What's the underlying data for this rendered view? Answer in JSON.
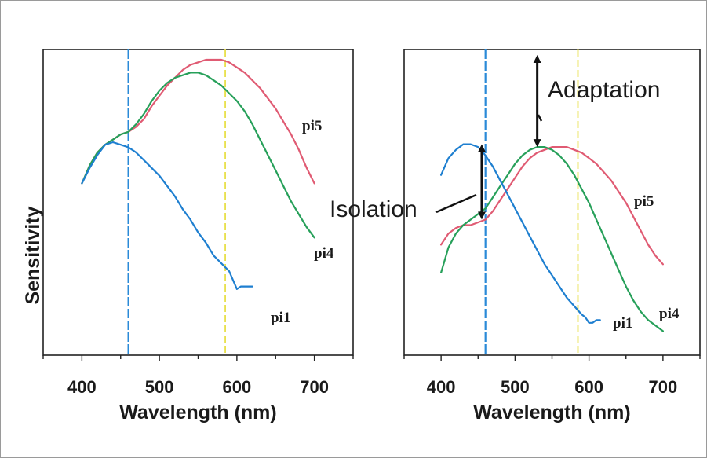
{
  "ylabel": "Sensitivity",
  "colors": {
    "pi1": "#1e7fd0",
    "pi4": "#27a05a",
    "pi5": "#e05b73",
    "blue_line": "#2a8ad8",
    "yellow_line": "#e8e04a"
  },
  "chart_data": [
    {
      "type": "line",
      "xlabel": "Wavelength (nm)",
      "ylabel": "Sensitivity",
      "xlim": [
        350,
        750
      ],
      "ylim": [
        0,
        1
      ],
      "xticks": [
        "400",
        "500",
        "600",
        "700"
      ],
      "vlines": [
        {
          "x": 460,
          "color": "#2a8ad8",
          "style": "dashed"
        },
        {
          "x": 585,
          "color": "#e8e04a",
          "style": "dashed"
        }
      ],
      "series": [
        {
          "name": "pi5",
          "color": "#e05b73",
          "x": [
            400,
            410,
            420,
            430,
            440,
            450,
            460,
            470,
            480,
            490,
            500,
            510,
            520,
            530,
            540,
            550,
            560,
            570,
            580,
            590,
            600,
            610,
            620,
            630,
            640,
            650,
            660,
            670,
            680,
            690,
            700
          ],
          "y": [
            0.52,
            0.59,
            0.64,
            0.67,
            0.69,
            0.71,
            0.72,
            0.74,
            0.77,
            0.82,
            0.86,
            0.9,
            0.93,
            0.96,
            0.98,
            0.99,
            1.0,
            1.0,
            1.0,
            0.99,
            0.97,
            0.95,
            0.92,
            0.89,
            0.85,
            0.81,
            0.76,
            0.71,
            0.65,
            0.58,
            0.52
          ]
        },
        {
          "name": "pi4",
          "color": "#27a05a",
          "x": [
            400,
            410,
            420,
            430,
            440,
            450,
            460,
            470,
            480,
            490,
            500,
            510,
            520,
            530,
            540,
            550,
            560,
            570,
            580,
            590,
            600,
            610,
            620,
            630,
            640,
            650,
            660,
            670,
            680,
            690,
            700
          ],
          "y": [
            0.52,
            0.59,
            0.64,
            0.67,
            0.69,
            0.71,
            0.72,
            0.75,
            0.79,
            0.84,
            0.88,
            0.91,
            0.93,
            0.94,
            0.95,
            0.95,
            0.94,
            0.92,
            0.9,
            0.87,
            0.84,
            0.8,
            0.75,
            0.69,
            0.63,
            0.57,
            0.51,
            0.45,
            0.4,
            0.35,
            0.31
          ]
        },
        {
          "name": "pi1",
          "color": "#1e7fd0",
          "x": [
            400,
            410,
            420,
            430,
            440,
            450,
            460,
            470,
            480,
            490,
            500,
            510,
            520,
            530,
            540,
            550,
            560,
            570,
            580,
            590,
            600,
            605,
            610,
            615,
            620
          ],
          "y": [
            0.52,
            0.58,
            0.63,
            0.67,
            0.68,
            0.67,
            0.66,
            0.64,
            0.61,
            0.58,
            0.55,
            0.51,
            0.47,
            0.42,
            0.38,
            0.33,
            0.29,
            0.24,
            0.21,
            0.18,
            0.11,
            0.12,
            0.12,
            0.12,
            0.12
          ]
        }
      ]
    },
    {
      "type": "line",
      "xlabel": "Wavelength (nm)",
      "ylabel": "",
      "xlim": [
        350,
        750
      ],
      "ylim": [
        0,
        1
      ],
      "xticks": [
        "400",
        "500",
        "600",
        "700"
      ],
      "vlines": [
        {
          "x": 460,
          "color": "#2a8ad8",
          "style": "dashed"
        },
        {
          "x": 585,
          "color": "#e8e04a",
          "style": "dashed"
        }
      ],
      "series": [
        {
          "name": "pi5",
          "color": "#e05b73",
          "x": [
            400,
            410,
            420,
            430,
            440,
            450,
            460,
            470,
            480,
            490,
            500,
            510,
            520,
            530,
            540,
            550,
            560,
            570,
            580,
            590,
            600,
            610,
            620,
            630,
            640,
            650,
            660,
            670,
            680,
            690,
            700
          ],
          "y": [
            0.32,
            0.36,
            0.38,
            0.39,
            0.39,
            0.4,
            0.41,
            0.44,
            0.48,
            0.52,
            0.56,
            0.6,
            0.63,
            0.65,
            0.66,
            0.67,
            0.67,
            0.67,
            0.66,
            0.65,
            0.63,
            0.61,
            0.58,
            0.55,
            0.51,
            0.47,
            0.42,
            0.37,
            0.32,
            0.28,
            0.25
          ]
        },
        {
          "name": "pi4",
          "color": "#27a05a",
          "x": [
            400,
            410,
            420,
            430,
            440,
            450,
            460,
            470,
            480,
            490,
            500,
            510,
            520,
            530,
            540,
            550,
            560,
            570,
            580,
            590,
            600,
            610,
            620,
            630,
            640,
            650,
            660,
            670,
            680,
            690,
            700
          ],
          "y": [
            0.22,
            0.31,
            0.36,
            0.39,
            0.41,
            0.43,
            0.45,
            0.49,
            0.53,
            0.57,
            0.61,
            0.64,
            0.66,
            0.67,
            0.67,
            0.66,
            0.64,
            0.61,
            0.57,
            0.52,
            0.47,
            0.41,
            0.35,
            0.29,
            0.23,
            0.17,
            0.12,
            0.08,
            0.05,
            0.03,
            0.01
          ]
        },
        {
          "name": "pi1",
          "color": "#1e7fd0",
          "x": [
            400,
            410,
            420,
            430,
            440,
            450,
            460,
            470,
            480,
            490,
            500,
            510,
            520,
            530,
            540,
            550,
            560,
            570,
            580,
            590,
            595,
            600,
            605,
            610,
            615
          ],
          "y": [
            0.57,
            0.63,
            0.66,
            0.68,
            0.68,
            0.67,
            0.64,
            0.6,
            0.55,
            0.5,
            0.45,
            0.4,
            0.35,
            0.3,
            0.25,
            0.21,
            0.17,
            0.13,
            0.1,
            0.07,
            0.06,
            0.04,
            0.04,
            0.05,
            0.05
          ]
        }
      ],
      "annotations": [
        {
          "text": "Adaptation",
          "arrow_x": 530,
          "from": 0.67,
          "to": 1.0
        },
        {
          "text": "Isolation",
          "arrow_x": 455,
          "from": 0.41,
          "to": 0.68
        }
      ]
    }
  ]
}
